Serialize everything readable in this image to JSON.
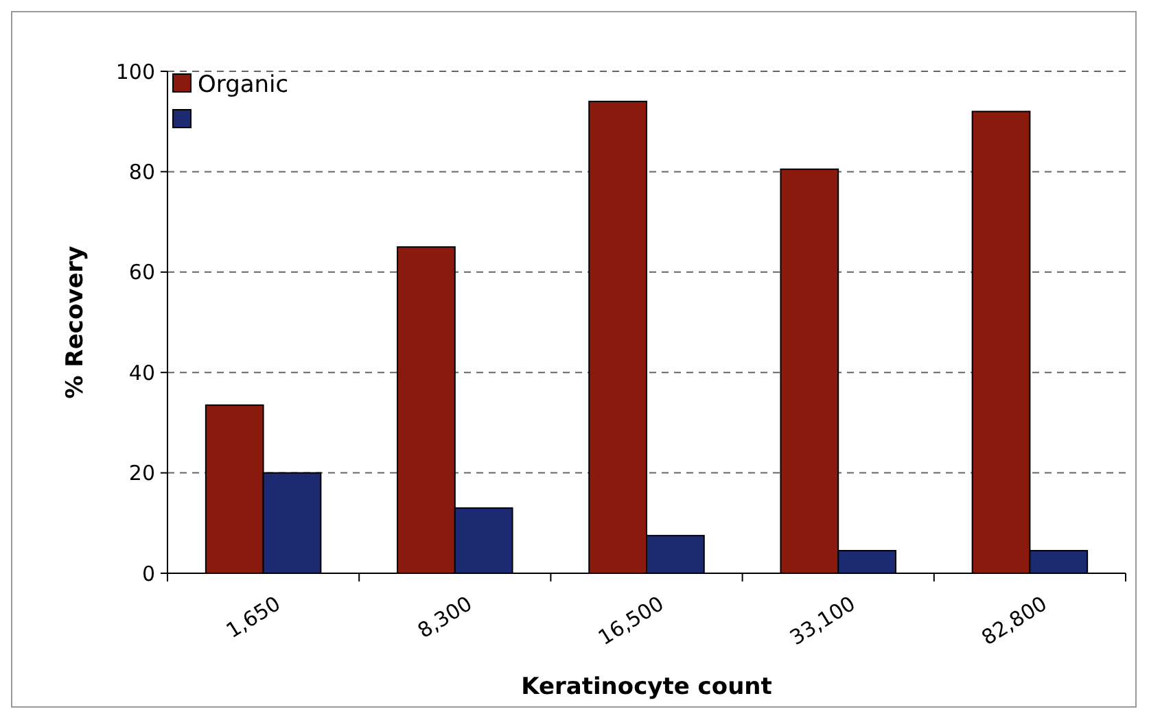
{
  "chart_data": {
    "type": "bar",
    "xlabel": "Keratinocyte count",
    "ylabel": "% Recovery",
    "categories": [
      "1,650",
      "8,300",
      "16,500",
      "33,100",
      "82,800"
    ],
    "series": [
      {
        "name": "Organic",
        "color": "#8b1a0e",
        "values": [
          33.5,
          65,
          94,
          80.5,
          92
        ]
      },
      {
        "color": "#1c2a72",
        "values": [
          20,
          13,
          7.5,
          4.5,
          4.5
        ]
      }
    ],
    "ylim": [
      0,
      100
    ],
    "yticks": [
      0,
      20,
      40,
      60,
      80,
      100
    ],
    "grid": "y",
    "legend": "top left"
  }
}
